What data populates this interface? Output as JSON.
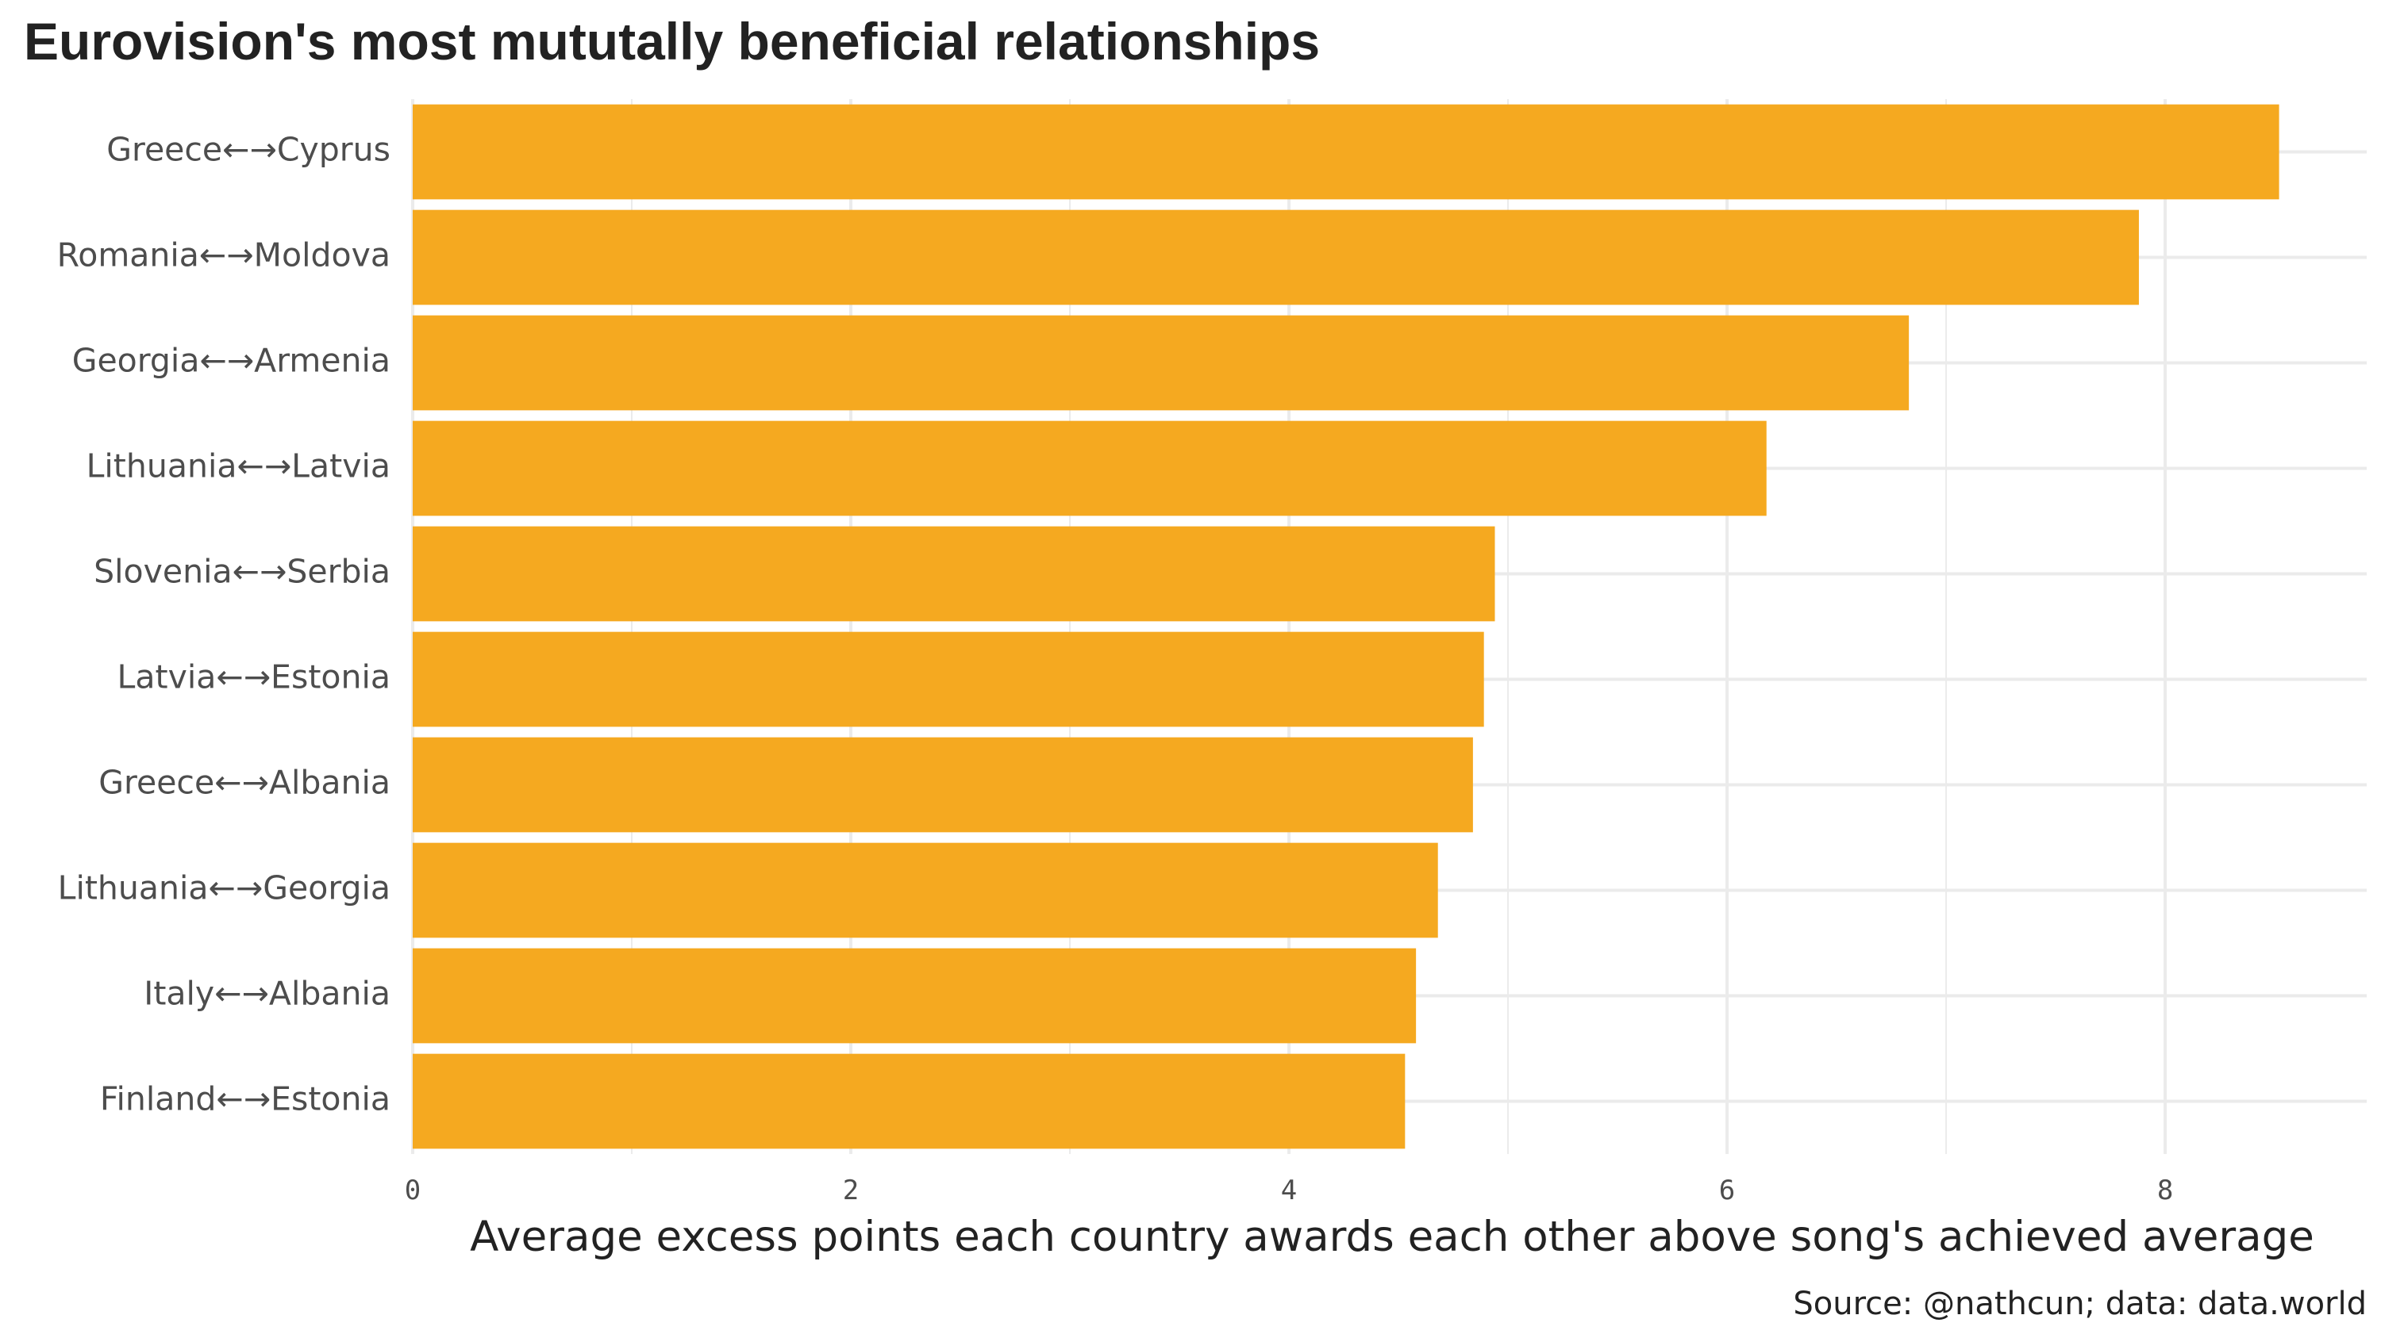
{
  "chart_data": {
    "type": "bar",
    "orientation": "horizontal",
    "title": "Eurovision's most mututally beneficial relationships",
    "xlabel": "Average excess points each country awards each other above song's achieved average",
    "ylabel": "",
    "caption": "Source: @nathcun; data: data.world",
    "categories": [
      "Greece←→Cyprus",
      "Romania←→Moldova",
      "Georgia←→Armenia",
      "Lithuania←→Latvia",
      "Slovenia←→Serbia",
      "Latvia←→Estonia",
      "Greece←→Albania",
      "Lithuania←→Georgia",
      "Italy←→Albania",
      "Finland←→Estonia"
    ],
    "values": [
      8.52,
      7.88,
      6.83,
      6.18,
      4.94,
      4.89,
      4.84,
      4.68,
      4.58,
      4.53
    ],
    "xticks": [
      0,
      2,
      4,
      6,
      8
    ],
    "xlim": [
      0,
      8.92
    ],
    "grid": true,
    "bar_color": "#f5a920",
    "grid_color": "#ebebeb"
  }
}
